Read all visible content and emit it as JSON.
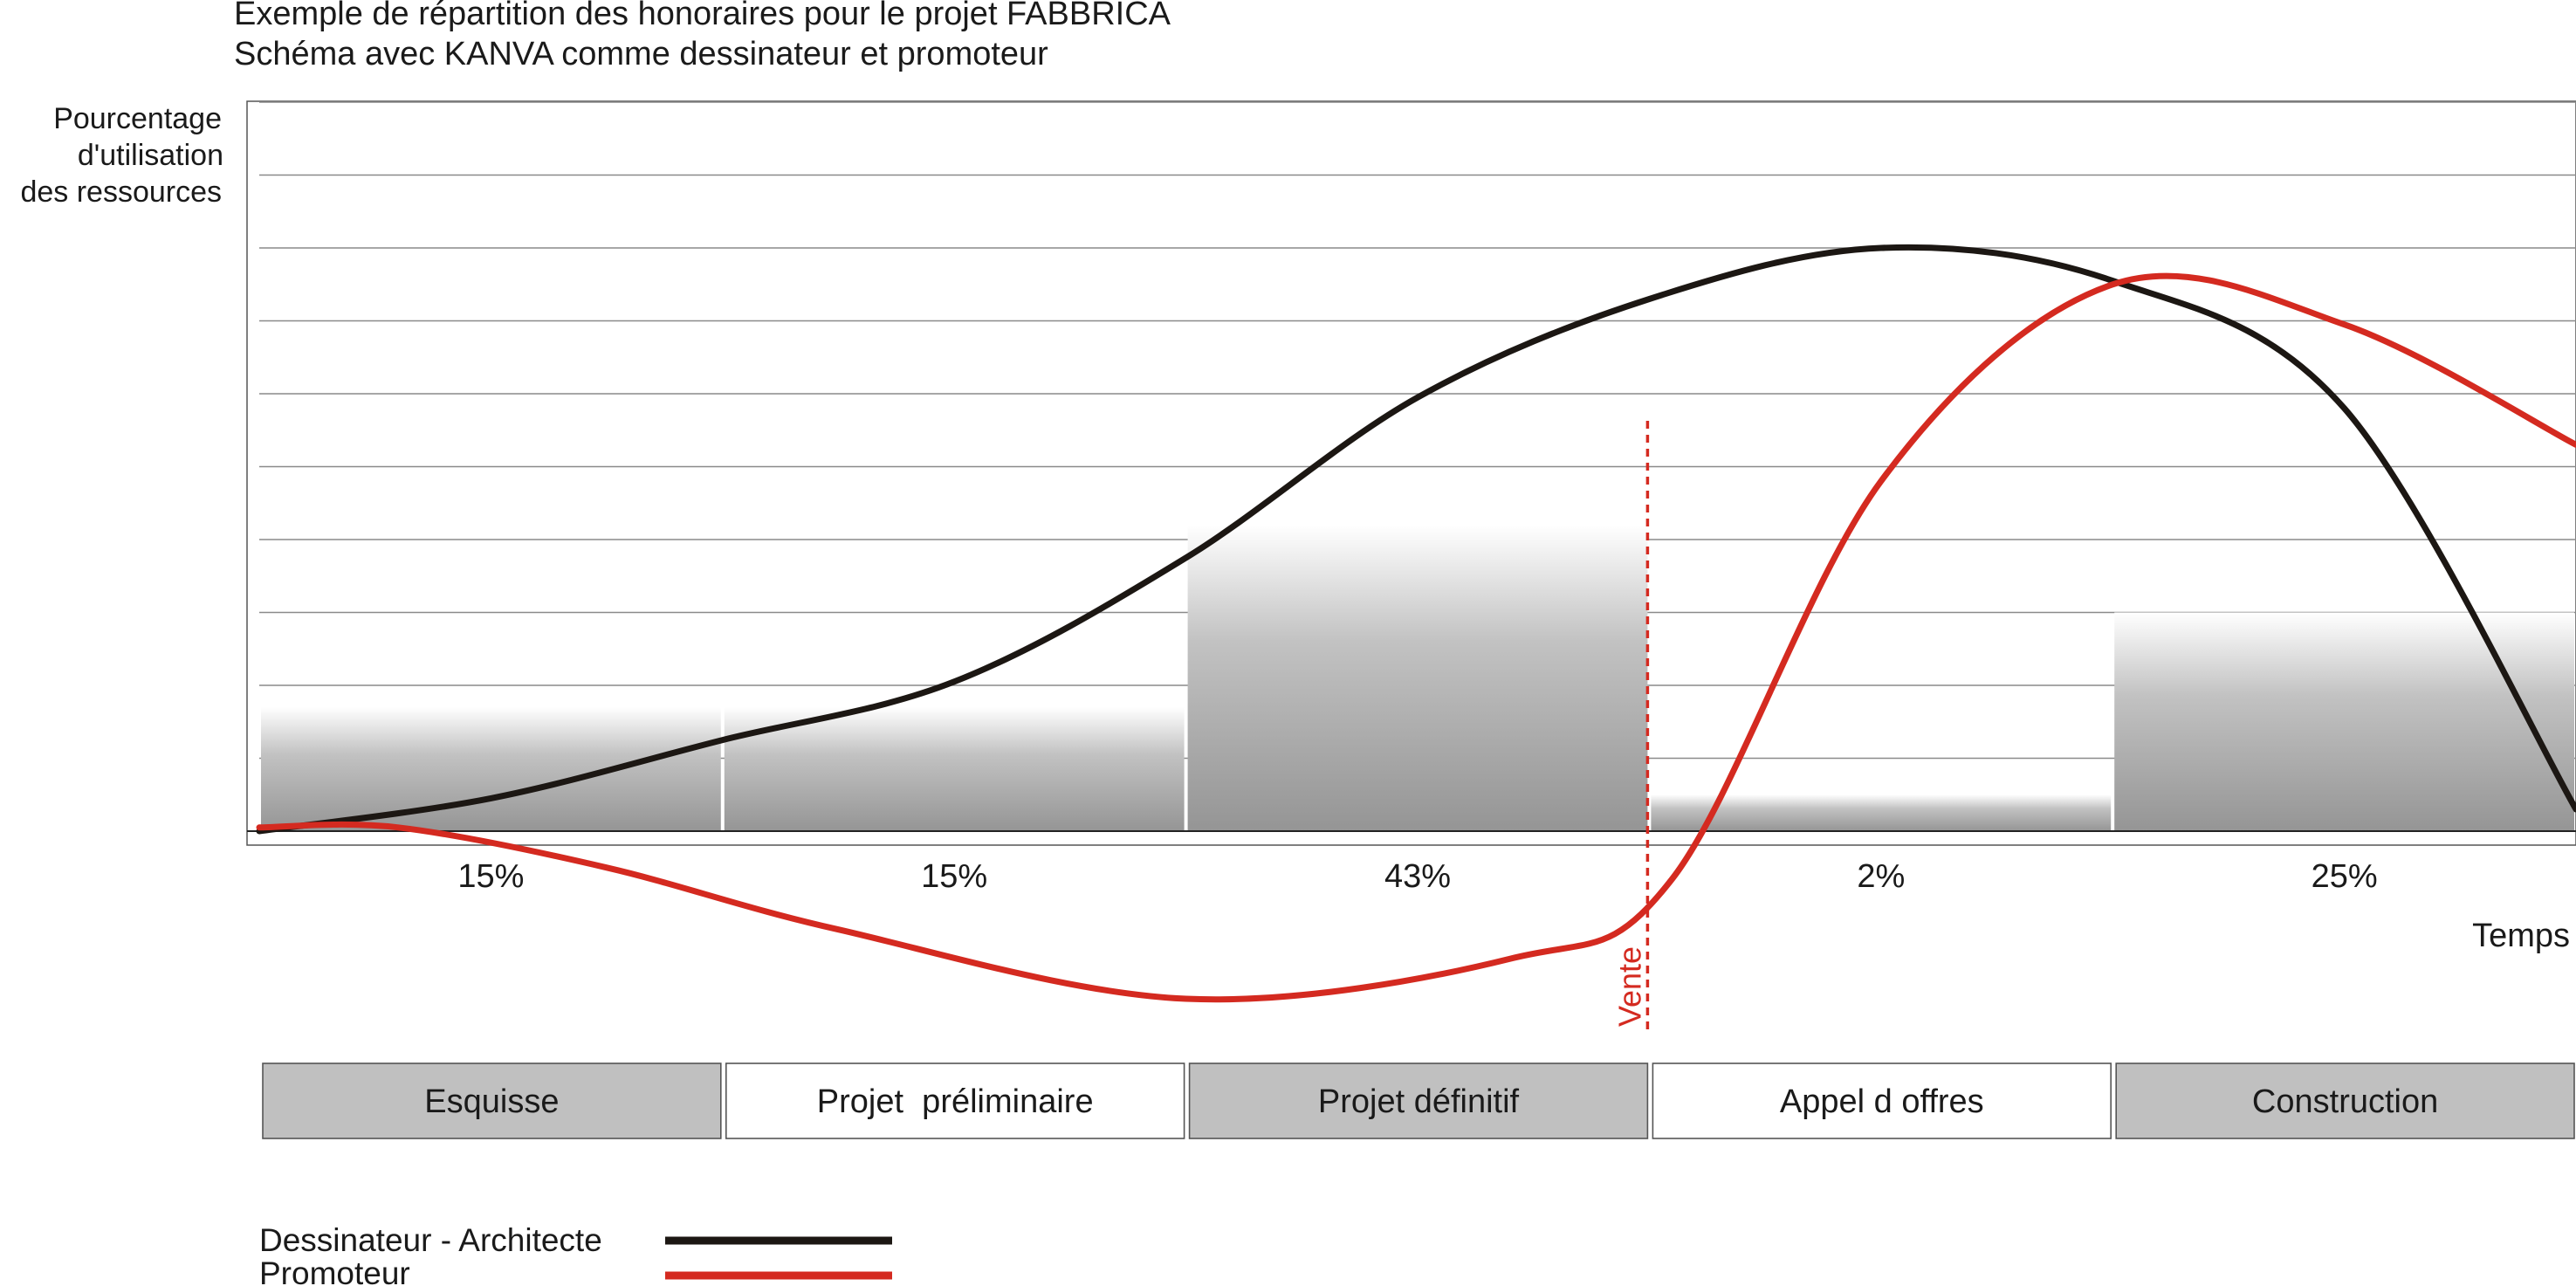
{
  "chart_data": {
    "type": "line",
    "title": "Exemple de répartition des honoraires pour le projet FABBRICA",
    "subtitle": "Schéma avec KANVA comme dessinateur et promoteur",
    "ylabel": [
      "Pourcentage",
      "d'utilisation",
      "des ressources"
    ],
    "xlabel": "Temps",
    "grid": true,
    "xlim": [
      0,
      5
    ],
    "ylim": [
      -2.3,
      10
    ],
    "phases": [
      "Esquisse",
      "Projet  préliminaire",
      "Projet définitif",
      "Appel d offres",
      "Construction"
    ],
    "fee_shares": [
      "15%",
      "15%",
      "43%",
      "2%",
      "25%"
    ],
    "bar_values": [
      1.7,
      1.7,
      4.2,
      0.5,
      3.0
    ],
    "phase_fill": [
      "#c0c0c0",
      "#ffffff",
      "#c0c0c0",
      "#ffffff",
      "#c0c0c0"
    ],
    "marker": {
      "x": 3.0,
      "label": "Vente",
      "color": "#d42a20"
    },
    "series": [
      {
        "name": "Dessinateur - Architecte",
        "color": "#1c1713",
        "points": [
          [
            0.0,
            0.0
          ],
          [
            0.5,
            0.45
          ],
          [
            1.0,
            1.25
          ],
          [
            1.5,
            2.05
          ],
          [
            2.0,
            3.75
          ],
          [
            2.5,
            5.95
          ],
          [
            3.0,
            7.3
          ],
          [
            3.5,
            8.0
          ],
          [
            4.0,
            7.55
          ],
          [
            4.5,
            5.8
          ],
          [
            5.0,
            0.3
          ]
        ]
      },
      {
        "name": "Promoteur",
        "color": "#d42a20",
        "points": [
          [
            0.0,
            0.05
          ],
          [
            0.3,
            0.05
          ],
          [
            0.75,
            -0.5
          ],
          [
            1.25,
            -1.35
          ],
          [
            2.0,
            -2.3
          ],
          [
            2.7,
            -1.75
          ],
          [
            3.05,
            -0.65
          ],
          [
            3.5,
            4.8
          ],
          [
            4.0,
            7.5
          ],
          [
            4.5,
            6.95
          ],
          [
            5.0,
            5.3
          ]
        ]
      }
    ]
  },
  "legend": {
    "architect_label": "Dessinateur - Architecte",
    "promoteur_label": "Promoteur",
    "architect_color": "#1c1713",
    "promoteur_color": "#d42a20"
  }
}
